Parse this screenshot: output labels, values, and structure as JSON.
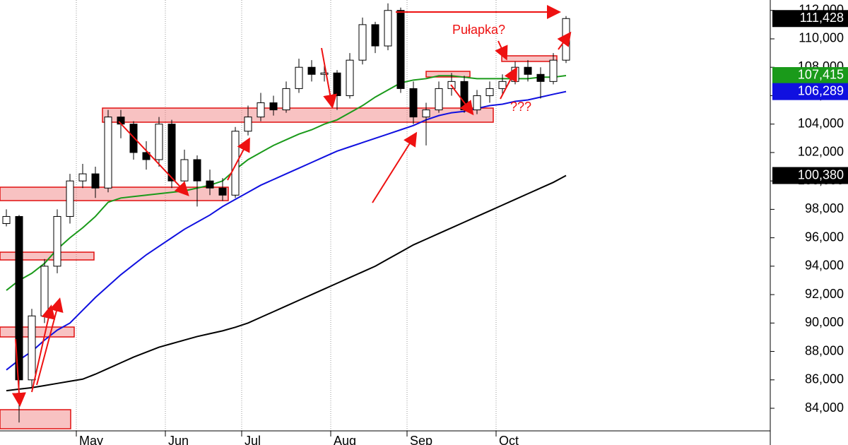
{
  "chart_data": {
    "type": "candlestick",
    "categories": [
      null,
      null,
      null,
      null,
      null,
      null,
      "May",
      null,
      null,
      null,
      null,
      null,
      null,
      "Jun",
      null,
      null,
      null,
      null,
      null,
      "Jul",
      null,
      null,
      null,
      null,
      null,
      null,
      "Aug",
      null,
      null,
      null,
      null,
      null,
      "Sep",
      null,
      null,
      null,
      null,
      null,
      null,
      "Oct",
      null,
      null,
      null,
      null,
      null
    ],
    "ohlc": [
      [
        97000,
        98000,
        96800,
        97500
      ],
      [
        97500,
        97600,
        83000,
        86000
      ],
      [
        86000,
        91000,
        85500,
        90500
      ],
      [
        90500,
        94500,
        90000,
        94000
      ],
      [
        94000,
        98000,
        93500,
        97500
      ],
      [
        97500,
        100500,
        97000,
        100000
      ],
      [
        100000,
        101200,
        99500,
        100500
      ],
      [
        100500,
        101000,
        98800,
        99500
      ],
      [
        99500,
        105000,
        99200,
        104500
      ],
      [
        104500,
        105000,
        103000,
        104000
      ],
      [
        104000,
        104200,
        101500,
        102000
      ],
      [
        102000,
        102800,
        100800,
        101500
      ],
      [
        101500,
        104500,
        101000,
        104000
      ],
      [
        104000,
        104300,
        99500,
        100000
      ],
      [
        100000,
        102200,
        99800,
        101500
      ],
      [
        101500,
        101800,
        98200,
        100000
      ],
      [
        100000,
        100800,
        99000,
        99500
      ],
      [
        99500,
        100200,
        98600,
        99000
      ],
      [
        99000,
        103800,
        98800,
        103500
      ],
      [
        103500,
        105300,
        103200,
        104500
      ],
      [
        104500,
        106200,
        104200,
        105500
      ],
      [
        105500,
        106000,
        104600,
        105000
      ],
      [
        105000,
        107000,
        104800,
        106500
      ],
      [
        106500,
        108600,
        106200,
        108000
      ],
      [
        108000,
        108500,
        107000,
        107500
      ],
      [
        107500,
        108400,
        107000,
        107600
      ],
      [
        107600,
        107800,
        105000,
        106000
      ],
      [
        106000,
        109000,
        105800,
        108500
      ],
      [
        108500,
        111500,
        108200,
        111000
      ],
      [
        111000,
        111200,
        109000,
        109500
      ],
      [
        109500,
        112500,
        109200,
        112000
      ],
      [
        112000,
        112200,
        106200,
        106500
      ],
      [
        106500,
        107000,
        104000,
        104500
      ],
      [
        104500,
        105500,
        102500,
        105000
      ],
      [
        105000,
        107000,
        104800,
        106500
      ],
      [
        106500,
        107600,
        106000,
        107000
      ],
      [
        107000,
        107400,
        104800,
        105000
      ],
      [
        105000,
        106400,
        104700,
        106000
      ],
      [
        106000,
        107000,
        105500,
        106500
      ],
      [
        106500,
        107500,
        106000,
        107000
      ],
      [
        107000,
        108400,
        106800,
        108000
      ],
      [
        108000,
        108500,
        107000,
        107500
      ],
      [
        107500,
        108000,
        105800,
        107000
      ],
      [
        107000,
        109000,
        106800,
        108500
      ],
      [
        108500,
        111600,
        108300,
        111428
      ]
    ],
    "price_label": "111,428",
    "up_color": "#ffffff",
    "down_color": "#000000",
    "series": [
      {
        "color": "#1a9a1a",
        "price_label": "107,415",
        "values": [
          92300,
          93000,
          93500,
          94200,
          95200,
          96000,
          96700,
          97500,
          98500,
          98800,
          98900,
          99000,
          99100,
          99200,
          99300,
          99500,
          99700,
          100000,
          100800,
          101500,
          102000,
          102500,
          102900,
          103300,
          103600,
          104000,
          104300,
          104800,
          105300,
          105900,
          106400,
          106900,
          107100,
          107200,
          107400,
          107400,
          107300,
          107200,
          107200,
          107200,
          107200,
          107200,
          107300,
          107300,
          107415
        ]
      },
      {
        "color": "#1010e0",
        "price_label": "106,289",
        "values": [
          86700,
          87400,
          88000,
          88800,
          89500,
          90000,
          90900,
          91800,
          92600,
          93400,
          94100,
          94800,
          95400,
          96000,
          96600,
          97100,
          97600,
          98200,
          98700,
          99200,
          99700,
          100100,
          100500,
          100900,
          101300,
          101700,
          102100,
          102400,
          102700,
          103000,
          103300,
          103600,
          103900,
          104300,
          104600,
          104800,
          104900,
          105100,
          105300,
          105400,
          105600,
          105700,
          105900,
          106100,
          106289
        ]
      },
      {
        "color": "#000000",
        "price_label": "100,380",
        "values": [
          85240,
          85350,
          85450,
          85600,
          85750,
          85900,
          86050,
          86400,
          86800,
          87200,
          87600,
          87950,
          88300,
          88550,
          88800,
          89050,
          89250,
          89450,
          89700,
          90000,
          90400,
          90800,
          91200,
          91600,
          92000,
          92400,
          92800,
          93200,
          93600,
          94000,
          94500,
          95000,
          95500,
          95900,
          96300,
          96700,
          97100,
          97500,
          97900,
          98300,
          98700,
          99100,
          99500,
          99900,
          100380
        ]
      }
    ],
    "ylim": [
      82410,
      112734
    ],
    "yticks": [
      {
        "value": 84000,
        "label": "84,000"
      },
      {
        "value": 86000,
        "label": "86,000"
      },
      {
        "value": 88000,
        "label": "88,000"
      },
      {
        "value": 90000,
        "label": "90,000"
      },
      {
        "value": 92000,
        "label": "92,000"
      },
      {
        "value": 94000,
        "label": "94,000"
      },
      {
        "value": 96000,
        "label": "96,000"
      },
      {
        "value": 98000,
        "label": "98,000"
      },
      {
        "value": 100000,
        "label": "100,000"
      },
      {
        "value": 102000,
        "label": "102,000"
      },
      {
        "value": 104000,
        "label": "104,000"
      },
      {
        "value": 106000,
        "label": "106,000"
      },
      {
        "value": 108000,
        "label": "108,000"
      },
      {
        "value": 110000,
        "label": "110,000"
      },
      {
        "value": 112000,
        "label": "112,000"
      }
    ],
    "xgrid": true,
    "annotations": [
      "Pułapka?",
      "???"
    ]
  }
}
